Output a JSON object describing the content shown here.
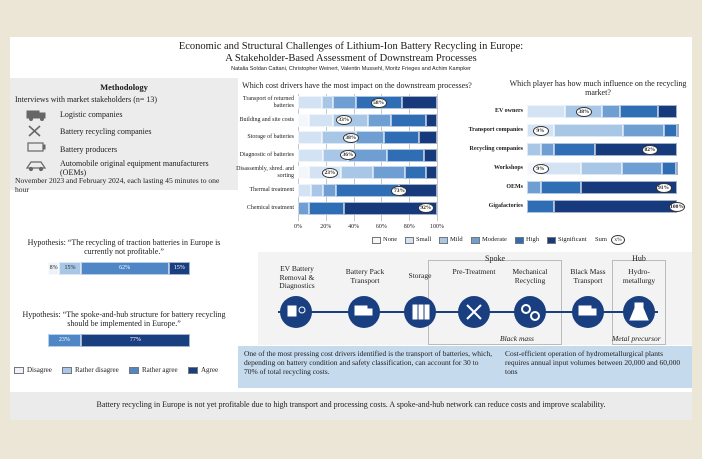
{
  "header": {
    "title": "Economic and Structural Challenges of Lithium-Ion Battery Recycling in Europe:",
    "subtitle": "A Stakeholder-Based Assessment of Downstream Processes",
    "authors": "Natalia Soldan Cattani, Christopher Weinert, Valentin Mussehl, Moritz Frieges and Achim Kampker"
  },
  "methodology": {
    "heading": "Methodology",
    "intro": "Interviews with market stakeholders (n= 13)",
    "items": [
      "Logistic companies",
      "Battery recycling companies",
      "Battery producers",
      "Automobile original equipment manufacturers (OEMs)"
    ],
    "period": "November 2023 and February 2024, each lasting 45 minutes to one hour"
  },
  "chart_data": [
    {
      "type": "bar",
      "orientation": "horizontal",
      "stacked": true,
      "title": "Which cost drivers have the most impact on the downstream processes?",
      "categories": [
        "Transport of returned batteries",
        "Building and site costs",
        "Storage of batteries",
        "Diagnostic of batteries",
        "Disassembly, shred. and sorting",
        "Thermal treatment",
        "Chemical treatment"
      ],
      "series": [
        {
          "name": "None",
          "color": "#f3f6fb",
          "values": [
            0,
            8,
            0,
            0,
            8,
            0,
            0
          ]
        },
        {
          "name": "Small",
          "color": "#d3e3f3",
          "values": [
            17,
            17,
            17,
            18,
            23,
            9,
            0
          ]
        },
        {
          "name": "Mild",
          "color": "#a8c6e6",
          "values": [
            8,
            25,
            25,
            18,
            23,
            9,
            0
          ]
        },
        {
          "name": "Moderate",
          "color": "#6f9ed2",
          "values": [
            17,
            17,
            20,
            28,
            23,
            9,
            8
          ]
        },
        {
          "name": "High",
          "color": "#2f6db5",
          "values": [
            33,
            25,
            25,
            27,
            15,
            46,
            25
          ]
        },
        {
          "name": "Significant",
          "color": "#173a7c",
          "values": [
            25,
            8,
            13,
            9,
            8,
            27,
            67
          ]
        }
      ],
      "sum": {
        "name": "Sum",
        "values": [
          58,
          33,
          38,
          36,
          23,
          73,
          92
        ],
        "value_labels": [
          "58%",
          "33%",
          "38%",
          "36%",
          "23%",
          "73%",
          "92%"
        ]
      },
      "legend_symbol": "x%",
      "xlim": [
        0,
        100
      ],
      "xticks": [
        {
          "value": 0,
          "label": "0%"
        },
        {
          "value": 20,
          "label": "20%"
        },
        {
          "value": 40,
          "label": "40%"
        },
        {
          "value": 60,
          "label": "60%"
        },
        {
          "value": 80,
          "label": "80%"
        },
        {
          "value": 100,
          "label": "100%"
        }
      ]
    },
    {
      "type": "bar",
      "orientation": "horizontal",
      "stacked": true,
      "title": "Which player has how much influence on the recycling market?",
      "categories": [
        "EV owners",
        "Transport companies",
        "Recycling companies",
        "Workshops",
        "OEMs",
        "Gigafactories"
      ],
      "series": [
        {
          "color": "#f3f6fb",
          "values": [
            0,
            0,
            0,
            9,
            0,
            0
          ]
        },
        {
          "color": "#d3e3f3",
          "values": [
            25,
            18,
            0,
            27,
            0,
            0
          ]
        },
        {
          "color": "#a8c6e6",
          "values": [
            25,
            46,
            9,
            27,
            0,
            0
          ]
        },
        {
          "color": "#6f9ed2",
          "values": [
            12,
            27,
            9,
            27,
            9,
            0
          ]
        },
        {
          "color": "#2f6db5",
          "values": [
            25,
            9,
            27,
            9,
            27,
            18
          ]
        },
        {
          "color": "#173a7c",
          "values": [
            13,
            0,
            55,
            0,
            64,
            82
          ]
        }
      ],
      "sum": {
        "values": [
          38,
          9,
          82,
          9,
          91,
          100
        ],
        "value_labels": [
          "38%",
          "9%",
          "82%",
          "9%",
          "91%",
          "100%"
        ]
      },
      "xlim": [
        0,
        100
      ]
    },
    {
      "type": "bar",
      "orientation": "horizontal",
      "stacked": true,
      "categories": [
        "Hypothesis: “The recycling of traction batteries in Europe is currently not profitable.”",
        "Hypothesis: “The spoke-and-hub structure for battery recycling should be implemented in Europe.”"
      ],
      "series": [
        {
          "name": "Disagree",
          "color": "#eef2f8",
          "values": [
            8,
            0
          ],
          "value_labels": [
            "8%",
            null
          ]
        },
        {
          "name": "Rather disagree",
          "color": "#a8c6e6",
          "values": [
            15,
            0
          ],
          "value_labels": [
            "15%",
            null
          ]
        },
        {
          "name": "Rather agree",
          "color": "#4f86c6",
          "values": [
            62,
            23
          ],
          "value_labels": [
            "62%",
            "23%"
          ]
        },
        {
          "name": "Agree",
          "color": "#1a3f80",
          "values": [
            15,
            77
          ],
          "value_labels": [
            "15%",
            "77%"
          ]
        }
      ],
      "xlim": [
        0,
        100
      ]
    }
  ],
  "process": {
    "steps": [
      "EV Battery Removal & Diagnostics",
      "Battery Pack Transport",
      "Storage",
      "Pre-Treatment",
      "Mechanical Recycling",
      "Black Mass Transport",
      "Hydro-metallurgy"
    ],
    "groups": [
      "Spoke",
      "Hub"
    ],
    "outputs": [
      "Black mass",
      "Metal precursor"
    ]
  },
  "notes": [
    "One of the most pressing cost drivers identified is the transport of batteries, which, depending on battery condition and safety classification, can account for 30 to 70% of total recycling costs.",
    "Cost-efficient operation of hydrometallurgical plants requires annual input volumes between 20,000 and 60,000 tons"
  ],
  "footer": "Battery recycling in Europe is not yet profitable due to high transport and processing costs. A spoke-and-hub network can reduce costs and improve scalability."
}
